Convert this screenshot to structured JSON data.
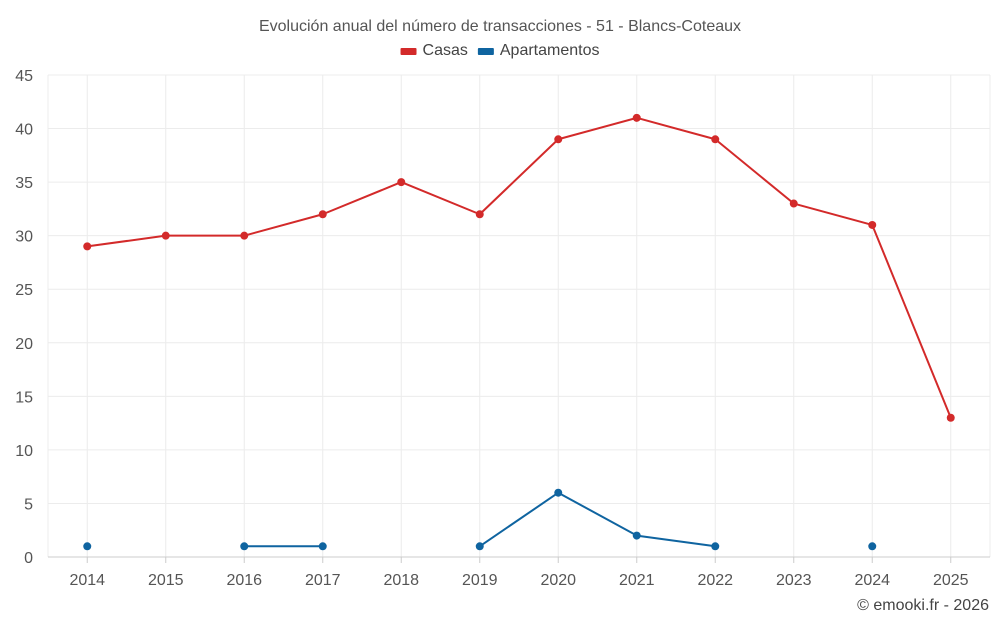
{
  "chart_data": {
    "type": "line",
    "title": "Evolución anual del número de transacciones - 51 - Blancs-Coteaux",
    "categories": [
      "2014",
      "2015",
      "2016",
      "2017",
      "2018",
      "2019",
      "2020",
      "2021",
      "2022",
      "2023",
      "2024",
      "2025"
    ],
    "series": [
      {
        "name": "Casas",
        "color": "#d32a2a",
        "values": [
          29,
          30,
          30,
          32,
          35,
          32,
          39,
          41,
          39,
          33,
          31,
          13
        ]
      },
      {
        "name": "Apartamentos",
        "color": "#0f64a0",
        "values": [
          1,
          null,
          1,
          1,
          null,
          1,
          6,
          2,
          1,
          null,
          1,
          null
        ]
      }
    ],
    "ylim": [
      0,
      45
    ],
    "yticks": [
      0,
      5,
      10,
      15,
      20,
      25,
      30,
      35,
      40,
      45
    ],
    "grid": true,
    "legend_position": "top-center",
    "xlabel": "",
    "ylabel": ""
  },
  "footer": {
    "credit": "© emooki.fr - 2026"
  }
}
